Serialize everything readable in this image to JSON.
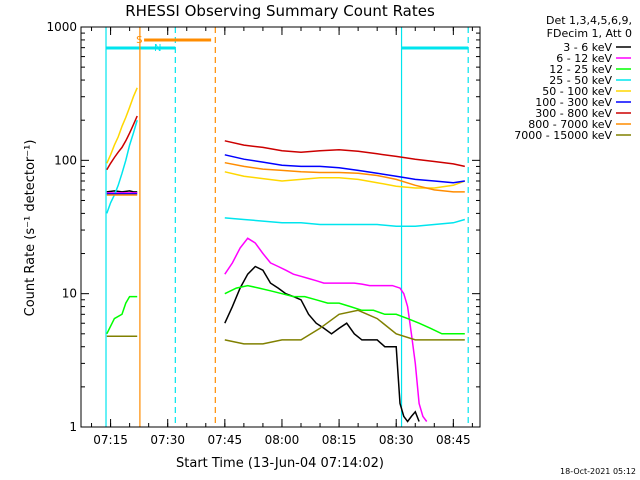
{
  "chart_data": {
    "type": "line",
    "title": "RHESSI Observing Summary Count Rates",
    "xlabel": "Start Time (13-Jun-04 07:14:02)",
    "ylabel": "Count Rate (s⁻¹ detector⁻¹)",
    "y_scale": "log",
    "ylim": [
      1,
      1000
    ],
    "x_range_minutes": [
      7.2333,
      94.0
    ],
    "x_ticks": [
      {
        "m": 15,
        "label": "07:15"
      },
      {
        "m": 30,
        "label": "07:30"
      },
      {
        "m": 45,
        "label": "07:45"
      },
      {
        "m": 60,
        "label": "08:00"
      },
      {
        "m": 75,
        "label": "08:15"
      },
      {
        "m": 90,
        "label": "08:30"
      },
      {
        "m": 105,
        "label": "08:45"
      }
    ],
    "y_ticks": [
      {
        "v": 1,
        "label": "1"
      },
      {
        "v": 10,
        "label": "10"
      },
      {
        "v": 100,
        "label": "100"
      },
      {
        "v": 1000,
        "label": "1000"
      }
    ],
    "legend_header": [
      "Det 1,3,4,5,6,9,",
      "FDecim 1, Att 0"
    ],
    "legend_placement": "right",
    "timestamp": "18-Oct-2021 05:12",
    "flags": [
      {
        "label": "S",
        "color": "#ff8c00",
        "start": 23.8,
        "end": 41.4
      },
      {
        "label": "N",
        "color": "#00e5ee",
        "start": 14.6,
        "end": 31.3
      }
    ],
    "night_intervals": [
      [
        13.8,
        32.0
      ],
      [
        91.4,
        108.9
      ]
    ],
    "saa_intervals": [
      [
        22.7,
        42.5
      ]
    ],
    "data_gaps": [
      [
        22.5,
        43.0
      ]
    ],
    "series": [
      {
        "name": "3 - 6 keV",
        "color": "#000000",
        "x": [
          14,
          16,
          18,
          20,
          21,
          22,
          45,
          47,
          49,
          51,
          53,
          55,
          57,
          59,
          61,
          63,
          65,
          67,
          69,
          71,
          73,
          75,
          77,
          79,
          81,
          83,
          85,
          87,
          89,
          90,
          91,
          92,
          93,
          94,
          95,
          96
        ],
        "y": [
          58,
          59,
          58,
          59,
          58,
          58,
          6,
          8,
          11,
          14,
          16,
          15,
          12,
          11,
          10,
          9.5,
          9,
          7,
          6,
          5.5,
          5,
          5.5,
          6,
          5,
          4.5,
          4.5,
          4.5,
          4,
          4,
          4,
          1.5,
          1.2,
          1.1,
          1.2,
          1.3,
          1.1
        ]
      },
      {
        "name": "6 - 12 keV",
        "color": "#ff00ff",
        "x": [
          14,
          16,
          18,
          20,
          22,
          45,
          47,
          49,
          51,
          53,
          55,
          57,
          59,
          61,
          63,
          65,
          67,
          69,
          71,
          73,
          75,
          77,
          79,
          81,
          83,
          85,
          87,
          89,
          91,
          92,
          93,
          94,
          95,
          96,
          97,
          98
        ],
        "y": [
          57,
          57,
          57,
          57,
          57,
          14,
          17,
          22,
          26,
          24,
          20,
          17,
          16,
          15,
          14,
          13.5,
          13,
          12.5,
          12,
          12,
          12,
          12,
          12,
          11.8,
          11.5,
          11.5,
          11.5,
          11.5,
          11,
          10,
          8,
          5,
          3,
          1.5,
          1.2,
          1.1
        ]
      },
      {
        "name": "12 - 25 keV",
        "color": "#00ff00",
        "x": [
          14,
          16,
          18,
          19,
          20,
          21,
          22,
          45,
          48,
          51,
          54,
          57,
          60,
          63,
          66,
          69,
          72,
          75,
          78,
          81,
          84,
          87,
          90,
          93,
          96,
          99,
          102,
          105,
          108
        ],
        "y": [
          5,
          6.5,
          7,
          8.5,
          9.5,
          9.5,
          9.5,
          10,
          11,
          11.5,
          11,
          10.5,
          10,
          9.5,
          9.5,
          9,
          8.5,
          8.5,
          8,
          7.5,
          7.5,
          7,
          7,
          6.5,
          6,
          5.5,
          5,
          5,
          5
        ]
      },
      {
        "name": "25 - 50 keV",
        "color": "#00e5ee",
        "x": [
          14,
          15,
          16,
          17,
          18,
          19,
          20,
          21,
          22,
          45,
          50,
          55,
          60,
          65,
          70,
          75,
          80,
          85,
          90,
          95,
          100,
          105,
          108
        ],
        "y": [
          40,
          48,
          55,
          65,
          80,
          100,
          130,
          160,
          200,
          37,
          36,
          35,
          34,
          34,
          33,
          33,
          33,
          33,
          32,
          32,
          33,
          34,
          36
        ]
      },
      {
        "name": "50 - 100 keV",
        "color": "#ffd700",
        "x": [
          14,
          15,
          16,
          17,
          18,
          19,
          20,
          21,
          22,
          45,
          50,
          55,
          60,
          65,
          70,
          75,
          80,
          85,
          90,
          95,
          100,
          105,
          108
        ],
        "y": [
          95,
          110,
          130,
          150,
          180,
          210,
          250,
          300,
          350,
          82,
          76,
          73,
          70,
          72,
          74,
          74,
          72,
          68,
          64,
          62,
          62,
          65,
          70
        ]
      },
      {
        "name": "100 - 300 keV",
        "color": "#0000ff",
        "x": [
          14,
          22,
          45,
          50,
          55,
          60,
          65,
          70,
          75,
          80,
          85,
          90,
          95,
          100,
          105,
          108
        ],
        "y": [
          56,
          56,
          110,
          102,
          97,
          92,
          90,
          90,
          88,
          84,
          80,
          76,
          72,
          70,
          68,
          70
        ]
      },
      {
        "name": "300 - 800 keV",
        "color": "#cc0000",
        "x": [
          14,
          15,
          16,
          17,
          18,
          19,
          20,
          21,
          22,
          45,
          50,
          55,
          60,
          65,
          70,
          75,
          80,
          85,
          90,
          95,
          100,
          105,
          108
        ],
        "y": [
          85,
          95,
          105,
          115,
          125,
          140,
          160,
          185,
          215,
          140,
          130,
          125,
          118,
          115,
          118,
          120,
          117,
          112,
          107,
          102,
          98,
          94,
          90
        ]
      },
      {
        "name": "800 - 7000 keV",
        "color": "#ff8c00",
        "x": [
          14,
          22,
          45,
          50,
          55,
          60,
          65,
          70,
          75,
          80,
          85,
          90,
          95,
          100,
          105,
          108
        ],
        "y": [
          55,
          55,
          96,
          90,
          86,
          84,
          82,
          81,
          81,
          80,
          77,
          72,
          65,
          60,
          58,
          58
        ]
      },
      {
        "name": "7000 - 15000 keV",
        "color": "#808000",
        "x": [
          14,
          16,
          18,
          20,
          22,
          45,
          50,
          55,
          60,
          65,
          70,
          75,
          80,
          85,
          90,
          95,
          100,
          105,
          108
        ],
        "y": [
          4.8,
          4.8,
          4.8,
          4.8,
          4.8,
          4.5,
          4.2,
          4.2,
          4.5,
          4.5,
          5.5,
          7,
          7.5,
          6.5,
          5,
          4.5,
          4.5,
          4.5,
          4.5
        ]
      }
    ]
  }
}
